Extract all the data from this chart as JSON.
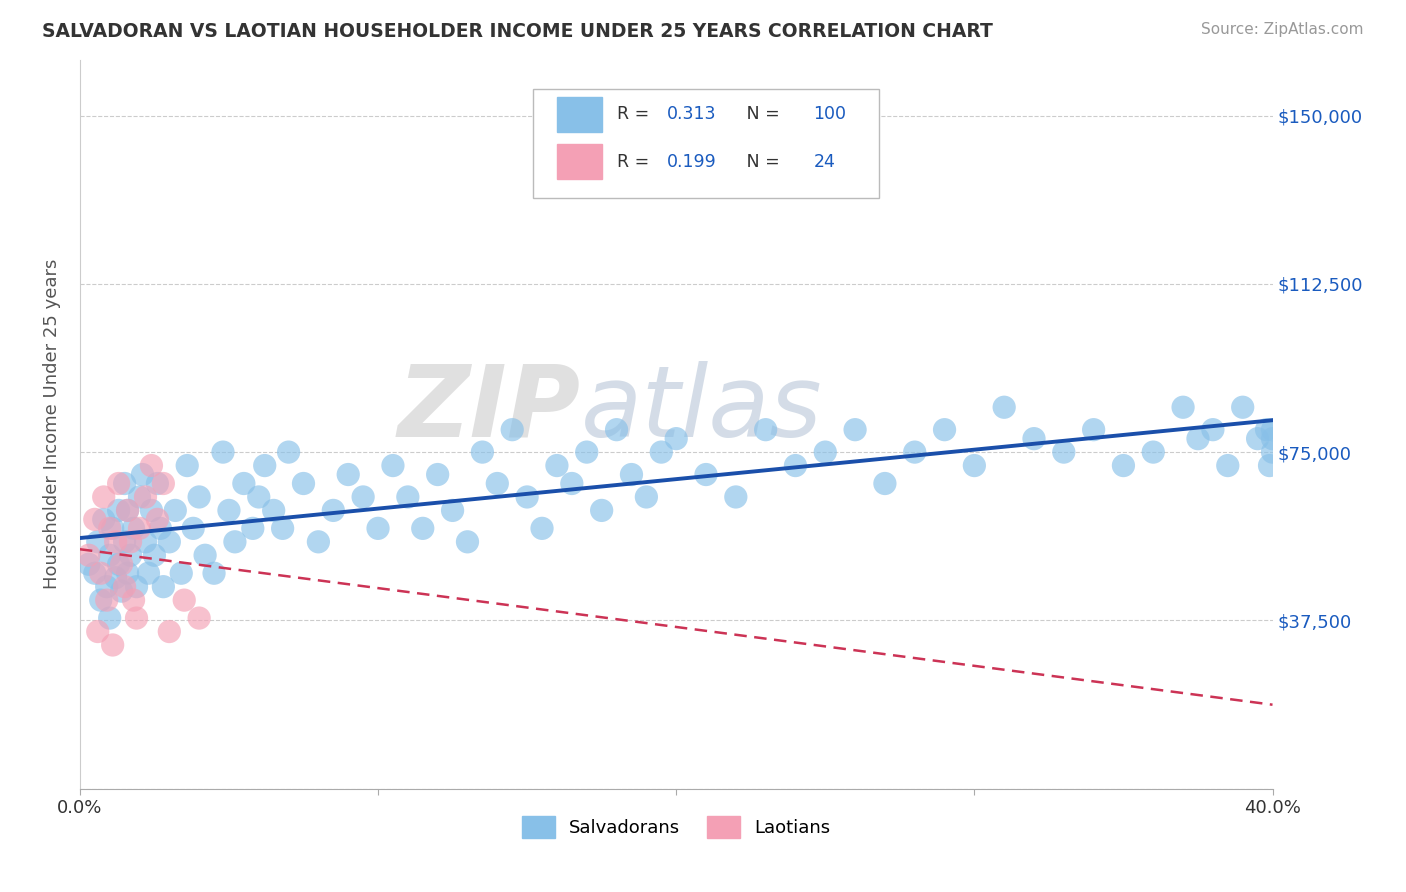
{
  "title": "SALVADORAN VS LAOTIAN HOUSEHOLDER INCOME UNDER 25 YEARS CORRELATION CHART",
  "source": "Source: ZipAtlas.com",
  "ylabel": "Householder Income Under 25 years",
  "yticks": [
    0,
    37500,
    75000,
    112500,
    150000
  ],
  "ytick_labels": [
    "",
    "$37,500",
    "$75,000",
    "$112,500",
    "$150,000"
  ],
  "xlim": [
    0.0,
    0.4
  ],
  "ylim": [
    0,
    162500
  ],
  "salvadoran_R": 0.313,
  "salvadoran_N": 100,
  "laotian_R": 0.199,
  "laotian_N": 24,
  "salvadoran_color": "#88c0e8",
  "laotian_color": "#f4a0b5",
  "trendline_salvadoran_color": "#1a4faa",
  "trendline_laotian_color": "#cc3355",
  "watermark_zip": "ZIP",
  "watermark_atlas": "atlas",
  "salvadoran_x": [
    0.003,
    0.005,
    0.006,
    0.007,
    0.008,
    0.009,
    0.01,
    0.01,
    0.011,
    0.012,
    0.013,
    0.013,
    0.014,
    0.015,
    0.015,
    0.016,
    0.016,
    0.017,
    0.018,
    0.019,
    0.02,
    0.021,
    0.022,
    0.023,
    0.024,
    0.025,
    0.026,
    0.027,
    0.028,
    0.03,
    0.032,
    0.034,
    0.036,
    0.038,
    0.04,
    0.042,
    0.045,
    0.048,
    0.05,
    0.052,
    0.055,
    0.058,
    0.06,
    0.062,
    0.065,
    0.068,
    0.07,
    0.075,
    0.08,
    0.085,
    0.09,
    0.095,
    0.1,
    0.105,
    0.11,
    0.115,
    0.12,
    0.125,
    0.13,
    0.135,
    0.14,
    0.145,
    0.15,
    0.155,
    0.16,
    0.165,
    0.17,
    0.175,
    0.18,
    0.185,
    0.19,
    0.195,
    0.2,
    0.21,
    0.22,
    0.23,
    0.24,
    0.25,
    0.26,
    0.27,
    0.28,
    0.29,
    0.3,
    0.31,
    0.32,
    0.33,
    0.34,
    0.35,
    0.36,
    0.37,
    0.375,
    0.38,
    0.385,
    0.39,
    0.395,
    0.398,
    0.399,
    0.4,
    0.4,
    0.4
  ],
  "salvadoran_y": [
    50000,
    48000,
    55000,
    42000,
    60000,
    45000,
    52000,
    38000,
    58000,
    47000,
    62000,
    50000,
    44000,
    68000,
    55000,
    48000,
    62000,
    52000,
    58000,
    45000,
    65000,
    70000,
    55000,
    48000,
    62000,
    52000,
    68000,
    58000,
    45000,
    55000,
    62000,
    48000,
    72000,
    58000,
    65000,
    52000,
    48000,
    75000,
    62000,
    55000,
    68000,
    58000,
    65000,
    72000,
    62000,
    58000,
    75000,
    68000,
    55000,
    62000,
    70000,
    65000,
    58000,
    72000,
    65000,
    58000,
    70000,
    62000,
    55000,
    75000,
    68000,
    80000,
    65000,
    58000,
    72000,
    68000,
    75000,
    62000,
    80000,
    70000,
    65000,
    75000,
    78000,
    70000,
    65000,
    80000,
    72000,
    75000,
    80000,
    68000,
    75000,
    80000,
    72000,
    85000,
    78000,
    75000,
    80000,
    72000,
    75000,
    85000,
    78000,
    80000,
    72000,
    85000,
    78000,
    80000,
    72000,
    78000,
    80000,
    75000
  ],
  "laotian_x": [
    0.003,
    0.005,
    0.006,
    0.007,
    0.008,
    0.009,
    0.01,
    0.011,
    0.012,
    0.013,
    0.014,
    0.015,
    0.016,
    0.017,
    0.018,
    0.019,
    0.02,
    0.022,
    0.024,
    0.026,
    0.028,
    0.03,
    0.035,
    0.04
  ],
  "laotian_y": [
    52000,
    60000,
    35000,
    48000,
    65000,
    42000,
    58000,
    32000,
    55000,
    68000,
    50000,
    45000,
    62000,
    55000,
    42000,
    38000,
    58000,
    65000,
    72000,
    60000,
    68000,
    35000,
    42000,
    38000
  ]
}
